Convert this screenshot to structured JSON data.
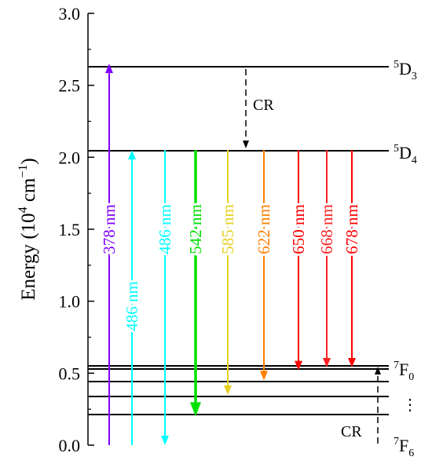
{
  "axis": {
    "ylabel_main": "Energy (10",
    "ylabel_exp1": "4",
    "ylabel_mid": " cm",
    "ylabel_exp2": "−1",
    "ylabel_end": ")",
    "ylim": [
      0,
      3.0
    ],
    "ticks": [
      "0.0",
      "0.5",
      "1.0",
      "1.5",
      "2.0",
      "2.5",
      "3.0"
    ]
  },
  "levels": {
    "D3": {
      "sup": "5",
      "base": "D",
      "sub": "3",
      "energy": 2.65
    },
    "D4": {
      "sup": "5",
      "base": "D",
      "sub": "4",
      "energy": 2.05
    },
    "F0": {
      "sup": "7",
      "base": "F",
      "sub": "0"
    },
    "F6": {
      "sup": "7",
      "base": "F",
      "sub": "6"
    },
    "F_manifold": [
      0.54,
      0.52,
      0.45,
      0.35,
      0.22
    ],
    "ellipsis": "⋮"
  },
  "transitions": [
    {
      "label": "378 nm",
      "color": "#7f00ff",
      "direction": "up",
      "from": 0.0,
      "to": 2.65
    },
    {
      "label": "486 nm",
      "color": "#00ffff",
      "direction": "up",
      "from": 0.0,
      "to": 2.05
    },
    {
      "label": "486 nm",
      "color": "#00ffff",
      "direction": "down",
      "from": 2.05,
      "to": 0.0
    },
    {
      "label": "542 nm",
      "color": "#00e000",
      "direction": "down",
      "from": 2.05,
      "to": 0.2
    },
    {
      "label": "585 nm",
      "color": "#e6d020",
      "direction": "down",
      "from": 2.05,
      "to": 0.35
    },
    {
      "label": "622 nm",
      "color": "#ff7f00",
      "direction": "down",
      "from": 2.05,
      "to": 0.45
    },
    {
      "label": "650 nm",
      "color": "#ff0000",
      "direction": "down",
      "from": 2.05,
      "to": 0.52
    },
    {
      "label": "668 nm",
      "color": "#ff2020",
      "direction": "down",
      "from": 2.05,
      "to": 0.54
    },
    {
      "label": "678 nm",
      "color": "#ff0000",
      "direction": "down",
      "from": 2.05,
      "to": 0.54
    }
  ],
  "cross_relaxation": {
    "top_label": "CR",
    "bottom_label": "CR"
  }
}
